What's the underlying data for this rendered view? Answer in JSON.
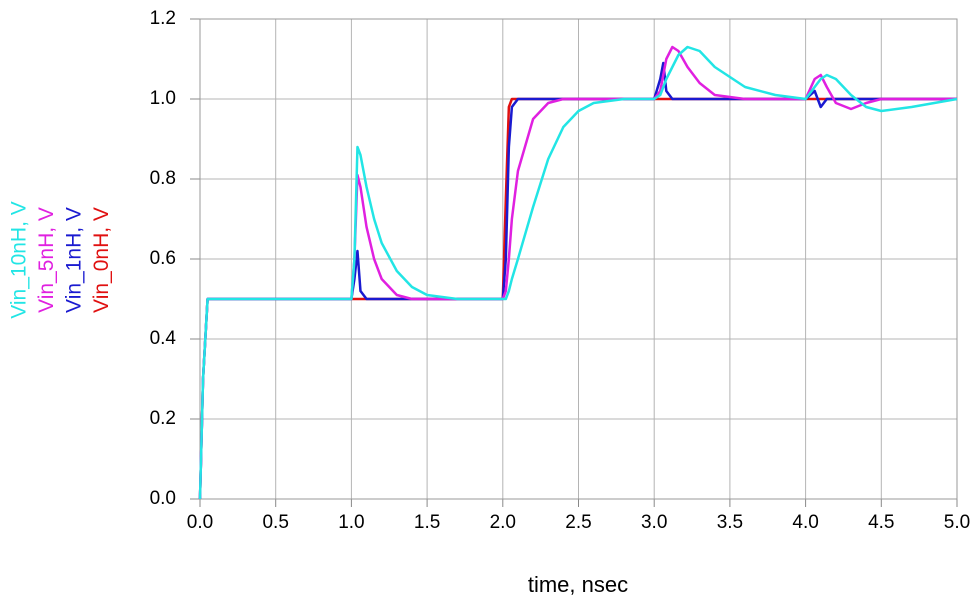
{
  "chart_data": {
    "type": "line",
    "x_label": "time, nsec",
    "x": [
      0,
      0.02,
      0.05,
      1.0,
      1.02,
      1.04,
      1.06,
      1.1,
      1.15,
      1.2,
      1.3,
      1.4,
      1.5,
      1.7,
      2.0,
      2.02,
      2.04,
      2.06,
      2.1,
      2.2,
      2.3,
      2.4,
      2.5,
      2.6,
      2.8,
      3.0,
      3.04,
      3.06,
      3.08,
      3.12,
      3.16,
      3.22,
      3.3,
      3.4,
      3.6,
      3.8,
      4.0,
      4.06,
      4.1,
      4.14,
      4.2,
      4.3,
      4.4,
      4.5,
      4.7,
      5.0
    ],
    "series": [
      {
        "name": "Vin_10nH, V",
        "color": "#22e5e5",
        "values": [
          0,
          0.3,
          0.5,
          0.5,
          0.6,
          0.88,
          0.86,
          0.78,
          0.7,
          0.64,
          0.57,
          0.53,
          0.51,
          0.5,
          0.5,
          0.5,
          0.52,
          0.55,
          0.6,
          0.73,
          0.85,
          0.93,
          0.97,
          0.99,
          1,
          1,
          1.01,
          1.03,
          1.05,
          1.08,
          1.11,
          1.13,
          1.12,
          1.08,
          1.03,
          1.01,
          1,
          1.03,
          1.05,
          1.06,
          1.05,
          1.01,
          0.98,
          0.97,
          0.98,
          1
        ]
      },
      {
        "name": "Vin_5nH, V",
        "color": "#e020e0",
        "values": [
          0,
          0.3,
          0.5,
          0.5,
          0.6,
          0.81,
          0.78,
          0.68,
          0.6,
          0.55,
          0.51,
          0.5,
          0.5,
          0.5,
          0.5,
          0.52,
          0.6,
          0.7,
          0.82,
          0.95,
          0.99,
          1,
          1,
          1,
          1,
          1,
          1.02,
          1.06,
          1.1,
          1.13,
          1.12,
          1.08,
          1.04,
          1.01,
          1,
          1,
          1,
          1.05,
          1.06,
          1.03,
          0.99,
          0.975,
          0.99,
          1,
          1,
          1
        ]
      },
      {
        "name": "Vin_1nH, V",
        "color": "#1a1ad0",
        "values": [
          0,
          0.3,
          0.5,
          0.5,
          0.55,
          0.62,
          0.52,
          0.5,
          0.5,
          0.5,
          0.5,
          0.5,
          0.5,
          0.5,
          0.5,
          0.6,
          0.88,
          0.98,
          1,
          1,
          1,
          1,
          1,
          1,
          1,
          1,
          1.05,
          1.09,
          1.02,
          1,
          1,
          1,
          1,
          1,
          1,
          1,
          1,
          1.02,
          0.98,
          1,
          1,
          1,
          1,
          1,
          1,
          1
        ]
      },
      {
        "name": "Vin_0nH, V",
        "color": "#e01010",
        "values": [
          0,
          0.3,
          0.5,
          0.5,
          0.5,
          0.5,
          0.5,
          0.5,
          0.5,
          0.5,
          0.5,
          0.5,
          0.5,
          0.5,
          0.5,
          0.75,
          0.98,
          1,
          1,
          1,
          1,
          1,
          1,
          1,
          1,
          1,
          1,
          1,
          1,
          1,
          1,
          1,
          1,
          1,
          1,
          1,
          1,
          1,
          1,
          1,
          1,
          1,
          1,
          1,
          1,
          1
        ]
      }
    ],
    "xlim": [
      0,
      5
    ],
    "xticks": [
      {
        "value": 0,
        "label": "0.0"
      },
      0.5,
      {
        "value": 1,
        "label": "1.0"
      },
      1.5,
      {
        "value": 2,
        "label": "2.0"
      },
      2.5,
      {
        "value": 3,
        "label": "3.0"
      },
      3.5,
      {
        "value": 4,
        "label": "4.0"
      },
      4.5,
      {
        "value": 5,
        "label": "5.0"
      }
    ],
    "ylim": [
      0,
      1.2
    ],
    "yticks": [
      {
        "value": 0,
        "label": "0.0"
      },
      0.2,
      0.4,
      0.6,
      0.8,
      {
        "value": 1,
        "label": "1.0"
      },
      1.2
    ],
    "grid": true
  }
}
